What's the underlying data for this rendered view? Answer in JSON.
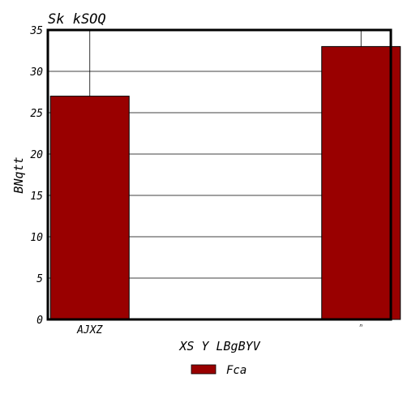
{
  "chart_data": {
    "type": "bar",
    "title": "Sk kSOQ",
    "xlabel": "XS Y LBgBYV",
    "ylabel": "BNqtt",
    "categories": [
      "AJXZ",
      "ⁿ"
    ],
    "series": [
      {
        "name": "Fca",
        "values": [
          27,
          33
        ],
        "color": "#990000"
      }
    ],
    "ylim": [
      0,
      35
    ],
    "yticks": [
      0,
      5,
      10,
      15,
      20,
      25,
      30,
      35
    ],
    "grid": true,
    "legend_position": "bottom-center"
  }
}
